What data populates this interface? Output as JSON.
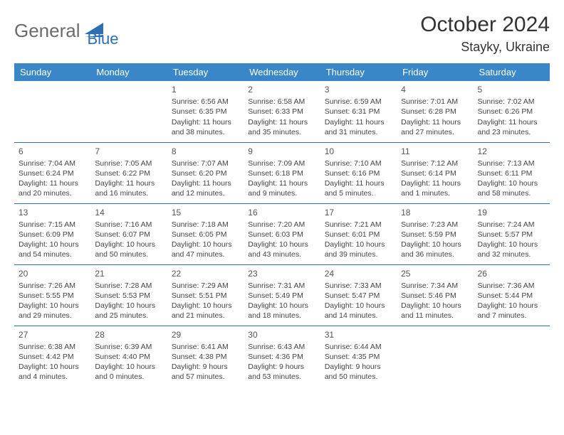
{
  "brand": {
    "part1": "General",
    "part2": "Blue",
    "accent": "#2e6fb3",
    "gray": "#6b6b6b"
  },
  "title": "October 2024",
  "location": "Stayky, Ukraine",
  "header_bg": "#3a87c7",
  "border_color": "#2e6fb3",
  "weekdays": [
    "Sunday",
    "Monday",
    "Tuesday",
    "Wednesday",
    "Thursday",
    "Friday",
    "Saturday"
  ],
  "weeks": [
    [
      null,
      null,
      {
        "n": "1",
        "sunrise": "6:56 AM",
        "sunset": "6:35 PM",
        "day_h": "11",
        "day_m": "38"
      },
      {
        "n": "2",
        "sunrise": "6:58 AM",
        "sunset": "6:33 PM",
        "day_h": "11",
        "day_m": "35"
      },
      {
        "n": "3",
        "sunrise": "6:59 AM",
        "sunset": "6:31 PM",
        "day_h": "11",
        "day_m": "31"
      },
      {
        "n": "4",
        "sunrise": "7:01 AM",
        "sunset": "6:28 PM",
        "day_h": "11",
        "day_m": "27"
      },
      {
        "n": "5",
        "sunrise": "7:02 AM",
        "sunset": "6:26 PM",
        "day_h": "11",
        "day_m": "23"
      }
    ],
    [
      {
        "n": "6",
        "sunrise": "7:04 AM",
        "sunset": "6:24 PM",
        "day_h": "11",
        "day_m": "20"
      },
      {
        "n": "7",
        "sunrise": "7:05 AM",
        "sunset": "6:22 PM",
        "day_h": "11",
        "day_m": "16"
      },
      {
        "n": "8",
        "sunrise": "7:07 AM",
        "sunset": "6:20 PM",
        "day_h": "11",
        "day_m": "12"
      },
      {
        "n": "9",
        "sunrise": "7:09 AM",
        "sunset": "6:18 PM",
        "day_h": "11",
        "day_m": "9"
      },
      {
        "n": "10",
        "sunrise": "7:10 AM",
        "sunset": "6:16 PM",
        "day_h": "11",
        "day_m": "5"
      },
      {
        "n": "11",
        "sunrise": "7:12 AM",
        "sunset": "6:14 PM",
        "day_h": "11",
        "day_m": "1"
      },
      {
        "n": "12",
        "sunrise": "7:13 AM",
        "sunset": "6:11 PM",
        "day_h": "10",
        "day_m": "58"
      }
    ],
    [
      {
        "n": "13",
        "sunrise": "7:15 AM",
        "sunset": "6:09 PM",
        "day_h": "10",
        "day_m": "54"
      },
      {
        "n": "14",
        "sunrise": "7:16 AM",
        "sunset": "6:07 PM",
        "day_h": "10",
        "day_m": "50"
      },
      {
        "n": "15",
        "sunrise": "7:18 AM",
        "sunset": "6:05 PM",
        "day_h": "10",
        "day_m": "47"
      },
      {
        "n": "16",
        "sunrise": "7:20 AM",
        "sunset": "6:03 PM",
        "day_h": "10",
        "day_m": "43"
      },
      {
        "n": "17",
        "sunrise": "7:21 AM",
        "sunset": "6:01 PM",
        "day_h": "10",
        "day_m": "39"
      },
      {
        "n": "18",
        "sunrise": "7:23 AM",
        "sunset": "5:59 PM",
        "day_h": "10",
        "day_m": "36"
      },
      {
        "n": "19",
        "sunrise": "7:24 AM",
        "sunset": "5:57 PM",
        "day_h": "10",
        "day_m": "32"
      }
    ],
    [
      {
        "n": "20",
        "sunrise": "7:26 AM",
        "sunset": "5:55 PM",
        "day_h": "10",
        "day_m": "29"
      },
      {
        "n": "21",
        "sunrise": "7:28 AM",
        "sunset": "5:53 PM",
        "day_h": "10",
        "day_m": "25"
      },
      {
        "n": "22",
        "sunrise": "7:29 AM",
        "sunset": "5:51 PM",
        "day_h": "10",
        "day_m": "21"
      },
      {
        "n": "23",
        "sunrise": "7:31 AM",
        "sunset": "5:49 PM",
        "day_h": "10",
        "day_m": "18"
      },
      {
        "n": "24",
        "sunrise": "7:33 AM",
        "sunset": "5:47 PM",
        "day_h": "10",
        "day_m": "14"
      },
      {
        "n": "25",
        "sunrise": "7:34 AM",
        "sunset": "5:46 PM",
        "day_h": "10",
        "day_m": "11"
      },
      {
        "n": "26",
        "sunrise": "7:36 AM",
        "sunset": "5:44 PM",
        "day_h": "10",
        "day_m": "7"
      }
    ],
    [
      {
        "n": "27",
        "sunrise": "6:38 AM",
        "sunset": "4:42 PM",
        "day_h": "10",
        "day_m": "4"
      },
      {
        "n": "28",
        "sunrise": "6:39 AM",
        "sunset": "4:40 PM",
        "day_h": "10",
        "day_m": "0"
      },
      {
        "n": "29",
        "sunrise": "6:41 AM",
        "sunset": "4:38 PM",
        "day_h": "9",
        "day_m": "57"
      },
      {
        "n": "30",
        "sunrise": "6:43 AM",
        "sunset": "4:36 PM",
        "day_h": "9",
        "day_m": "53"
      },
      {
        "n": "31",
        "sunrise": "6:44 AM",
        "sunset": "4:35 PM",
        "day_h": "9",
        "day_m": "50"
      },
      null,
      null
    ]
  ],
  "labels": {
    "sunrise": "Sunrise:",
    "sunset": "Sunset:",
    "daylight": "Daylight:",
    "hours": "hours",
    "and": "and",
    "minutes": "minutes."
  }
}
